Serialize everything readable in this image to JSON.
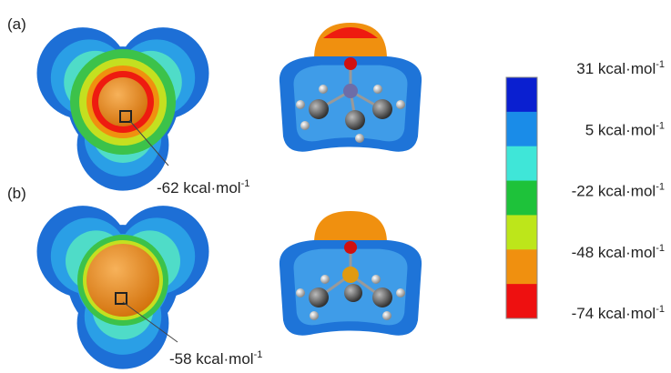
{
  "panels": [
    {
      "label": "(a)",
      "annotation": {
        "text": "-62 kcal·mol",
        "sup": "-1"
      }
    },
    {
      "label": "(b)",
      "annotation": {
        "text": "-58 kcal·mol",
        "sup": "-1"
      }
    }
  ],
  "colorbar": {
    "colors": [
      "#0a1fd0",
      "#1a8ce8",
      "#3fe6d8",
      "#1ec23a",
      "#bde61a",
      "#f0900f",
      "#ee1010"
    ],
    "labels": [
      {
        "text": "31 kcal·mol",
        "sup": "-1"
      },
      {
        "text": "5 kcal·mol",
        "sup": "-1"
      },
      {
        "text": "-22 kcal·mol",
        "sup": "-1"
      },
      {
        "text": "-48 kcal·mol",
        "sup": "-1"
      },
      {
        "text": "-74 kcal·mol",
        "sup": "-1"
      }
    ]
  }
}
